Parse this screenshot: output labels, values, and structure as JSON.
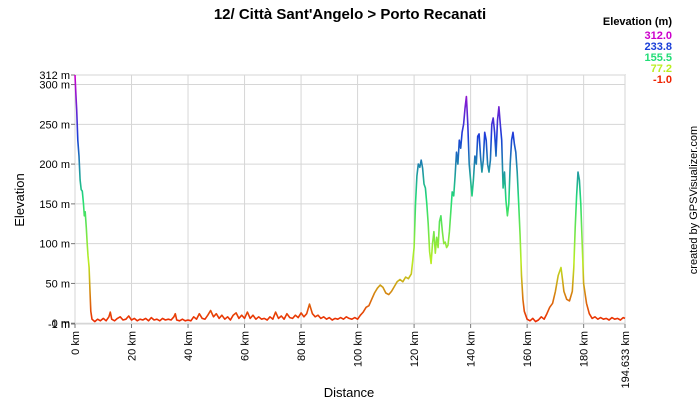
{
  "chart_data": {
    "type": "line",
    "title": "12/ Città Sant'Angelo > Porto Recanati",
    "xlabel": "Distance",
    "ylabel": "Elevation",
    "xlim": [
      0,
      194.633
    ],
    "ylim": [
      -1,
      312
    ],
    "x_ticks": [
      {
        "value": 0,
        "label": "0 km"
      },
      {
        "value": 20,
        "label": "20 km"
      },
      {
        "value": 40,
        "label": "40 km"
      },
      {
        "value": 60,
        "label": "60 km"
      },
      {
        "value": 80,
        "label": "80 km"
      },
      {
        "value": 100,
        "label": "100 km"
      },
      {
        "value": 120,
        "label": "120 km"
      },
      {
        "value": 140,
        "label": "140 km"
      },
      {
        "value": 160,
        "label": "160 km"
      },
      {
        "value": 180,
        "label": "180 km"
      },
      {
        "value": 194.633,
        "label": "194.633 km"
      }
    ],
    "y_ticks": [
      {
        "value": -1,
        "label": "-1 m"
      },
      {
        "value": 0,
        "label": "0 m"
      },
      {
        "value": 50,
        "label": "50 m"
      },
      {
        "value": 100,
        "label": "100 m"
      },
      {
        "value": 150,
        "label": "150 m"
      },
      {
        "value": 200,
        "label": "200 m"
      },
      {
        "value": 250,
        "label": "250 m"
      },
      {
        "value": 300,
        "label": "300 m"
      },
      {
        "value": 312,
        "label": "312 m"
      }
    ],
    "grid": true,
    "legend": {
      "title": "Elevation (m)",
      "placement": "top-right",
      "entries": [
        {
          "label": "312.0",
          "value": 312.0,
          "color": "#cc00cc"
        },
        {
          "label": "233.8",
          "value": 233.8,
          "color": "#1a3fd8"
        },
        {
          "label": "155.5",
          "value": 155.5,
          "color": "#22dd77"
        },
        {
          "label": "77.2",
          "value": 77.2,
          "color": "#bbee22"
        },
        {
          "label": "-1.0",
          "value": -1.0,
          "color": "#ee2200"
        }
      ]
    },
    "credit": "created by GPSVisualizer.com",
    "series": [
      {
        "points": [
          [
            0,
            312
          ],
          [
            0.3,
            290
          ],
          [
            0.6,
            268
          ],
          [
            1,
            230
          ],
          [
            1.4,
            210
          ],
          [
            1.8,
            180
          ],
          [
            2.2,
            168
          ],
          [
            2.6,
            166
          ],
          [
            3,
            150
          ],
          [
            3.3,
            135
          ],
          [
            3.6,
            140
          ],
          [
            4,
            120
          ],
          [
            4.3,
            100
          ],
          [
            4.6,
            85
          ],
          [
            5,
            70
          ],
          [
            5.3,
            40
          ],
          [
            5.6,
            15
          ],
          [
            6,
            5
          ],
          [
            7,
            2
          ],
          [
            8,
            5
          ],
          [
            9,
            3
          ],
          [
            10,
            6
          ],
          [
            11,
            3
          ],
          [
            12,
            8
          ],
          [
            12.5,
            14
          ],
          [
            13,
            5
          ],
          [
            14,
            3
          ],
          [
            15,
            6
          ],
          [
            16,
            8
          ],
          [
            17,
            4
          ],
          [
            18,
            5
          ],
          [
            19,
            9
          ],
          [
            20,
            4
          ],
          [
            21,
            6
          ],
          [
            22,
            3
          ],
          [
            23,
            5
          ],
          [
            24,
            4
          ],
          [
            25,
            6
          ],
          [
            26,
            3
          ],
          [
            27,
            7
          ],
          [
            28,
            4
          ],
          [
            29,
            5
          ],
          [
            30,
            3
          ],
          [
            31,
            6
          ],
          [
            32,
            4
          ],
          [
            33,
            5
          ],
          [
            34,
            4
          ],
          [
            35,
            8
          ],
          [
            35.5,
            12
          ],
          [
            36,
            4
          ],
          [
            37,
            3
          ],
          [
            38,
            5
          ],
          [
            39,
            3
          ],
          [
            40,
            4
          ],
          [
            41,
            3
          ],
          [
            42,
            8
          ],
          [
            43,
            5
          ],
          [
            44,
            12
          ],
          [
            45,
            6
          ],
          [
            46,
            5
          ],
          [
            47,
            10
          ],
          [
            48,
            16
          ],
          [
            49,
            8
          ],
          [
            50,
            12
          ],
          [
            51,
            6
          ],
          [
            52,
            10
          ],
          [
            53,
            5
          ],
          [
            54,
            8
          ],
          [
            55,
            4
          ],
          [
            56,
            10
          ],
          [
            57,
            13
          ],
          [
            58,
            6
          ],
          [
            59,
            10
          ],
          [
            60,
            6
          ],
          [
            61,
            14
          ],
          [
            62,
            6
          ],
          [
            63,
            10
          ],
          [
            64,
            5
          ],
          [
            65,
            8
          ],
          [
            66,
            5
          ],
          [
            67,
            6
          ],
          [
            68,
            4
          ],
          [
            69,
            8
          ],
          [
            70,
            5
          ],
          [
            71,
            14
          ],
          [
            72,
            6
          ],
          [
            73,
            9
          ],
          [
            74,
            5
          ],
          [
            75,
            12
          ],
          [
            76,
            7
          ],
          [
            77,
            6
          ],
          [
            78,
            10
          ],
          [
            79,
            7
          ],
          [
            80,
            13
          ],
          [
            81,
            8
          ],
          [
            82,
            12
          ],
          [
            83,
            24
          ],
          [
            84,
            12
          ],
          [
            85,
            8
          ],
          [
            86,
            10
          ],
          [
            87,
            6
          ],
          [
            88,
            8
          ],
          [
            89,
            5
          ],
          [
            90,
            7
          ],
          [
            91,
            4
          ],
          [
            92,
            6
          ],
          [
            93,
            5
          ],
          [
            94,
            7
          ],
          [
            95,
            5
          ],
          [
            96,
            8
          ],
          [
            97,
            6
          ],
          [
            98,
            5
          ],
          [
            99,
            7
          ],
          [
            100,
            5
          ],
          [
            101,
            10
          ],
          [
            102,
            14
          ],
          [
            103,
            20
          ],
          [
            104,
            22
          ],
          [
            105,
            30
          ],
          [
            106,
            38
          ],
          [
            107,
            44
          ],
          [
            108,
            48
          ],
          [
            109,
            45
          ],
          [
            110,
            38
          ],
          [
            111,
            36
          ],
          [
            112,
            40
          ],
          [
            113,
            46
          ],
          [
            114,
            52
          ],
          [
            115,
            55
          ],
          [
            116,
            52
          ],
          [
            117,
            58
          ],
          [
            118,
            56
          ],
          [
            119,
            62
          ],
          [
            120,
            95
          ],
          [
            120.5,
            150
          ],
          [
            121,
            185
          ],
          [
            121.5,
            200
          ],
          [
            122,
            196
          ],
          [
            122.5,
            205
          ],
          [
            123,
            195
          ],
          [
            123.5,
            175
          ],
          [
            124,
            170
          ],
          [
            124.5,
            150
          ],
          [
            125,
            125
          ],
          [
            125.5,
            90
          ],
          [
            126,
            75
          ],
          [
            126.5,
            100
          ],
          [
            127,
            115
          ],
          [
            127.5,
            88
          ],
          [
            128,
            108
          ],
          [
            128.5,
            95
          ],
          [
            129,
            128
          ],
          [
            129.5,
            135
          ],
          [
            130,
            115
          ],
          [
            130.5,
            100
          ],
          [
            131,
            102
          ],
          [
            131.5,
            95
          ],
          [
            132,
            98
          ],
          [
            132.5,
            115
          ],
          [
            133,
            140
          ],
          [
            133.5,
            165
          ],
          [
            134,
            160
          ],
          [
            134.5,
            185
          ],
          [
            135,
            215
          ],
          [
            135.5,
            200
          ],
          [
            136,
            230
          ],
          [
            136.5,
            220
          ],
          [
            137,
            240
          ],
          [
            137.5,
            250
          ],
          [
            138,
            270
          ],
          [
            138.5,
            285
          ],
          [
            139,
            250
          ],
          [
            139.5,
            200
          ],
          [
            140,
            180
          ],
          [
            140.5,
            160
          ],
          [
            141,
            180
          ],
          [
            141.5,
            210
          ],
          [
            142,
            200
          ],
          [
            142.5,
            235
          ],
          [
            143,
            238
          ],
          [
            143.5,
            210
          ],
          [
            144,
            190
          ],
          [
            144.5,
            205
          ],
          [
            145,
            240
          ],
          [
            145.5,
            230
          ],
          [
            146,
            200
          ],
          [
            146.5,
            190
          ],
          [
            147,
            205
          ],
          [
            147.5,
            250
          ],
          [
            148,
            258
          ],
          [
            148.5,
            240
          ],
          [
            149,
            210
          ],
          [
            149.5,
            255
          ],
          [
            150,
            272
          ],
          [
            150.5,
            250
          ],
          [
            151,
            230
          ],
          [
            151.5,
            170
          ],
          [
            152,
            190
          ],
          [
            152.5,
            155
          ],
          [
            153,
            135
          ],
          [
            153.5,
            150
          ],
          [
            154,
            200
          ],
          [
            154.5,
            230
          ],
          [
            155,
            240
          ],
          [
            155.5,
            225
          ],
          [
            156,
            215
          ],
          [
            156.5,
            190
          ],
          [
            157,
            150
          ],
          [
            157.5,
            110
          ],
          [
            158,
            60
          ],
          [
            158.5,
            30
          ],
          [
            159,
            15
          ],
          [
            160,
            5
          ],
          [
            161,
            3
          ],
          [
            162,
            6
          ],
          [
            163,
            2
          ],
          [
            164,
            4
          ],
          [
            165,
            8
          ],
          [
            166,
            5
          ],
          [
            167,
            12
          ],
          [
            168,
            20
          ],
          [
            169,
            25
          ],
          [
            170,
            40
          ],
          [
            171,
            60
          ],
          [
            172,
            70
          ],
          [
            172.5,
            55
          ],
          [
            173,
            40
          ],
          [
            173.5,
            35
          ],
          [
            174,
            30
          ],
          [
            175,
            28
          ],
          [
            176,
            40
          ],
          [
            176.5,
            70
          ],
          [
            177,
            120
          ],
          [
            177.5,
            160
          ],
          [
            178,
            190
          ],
          [
            178.5,
            180
          ],
          [
            179,
            150
          ],
          [
            179.5,
            100
          ],
          [
            180,
            50
          ],
          [
            181,
            25
          ],
          [
            182,
            12
          ],
          [
            183,
            6
          ],
          [
            184,
            8
          ],
          [
            185,
            5
          ],
          [
            186,
            7
          ],
          [
            187,
            5
          ],
          [
            188,
            6
          ],
          [
            189,
            4
          ],
          [
            190,
            7
          ],
          [
            191,
            5
          ],
          [
            192,
            6
          ],
          [
            193,
            4
          ],
          [
            194,
            7
          ],
          [
            194.633,
            6
          ]
        ]
      }
    ]
  }
}
